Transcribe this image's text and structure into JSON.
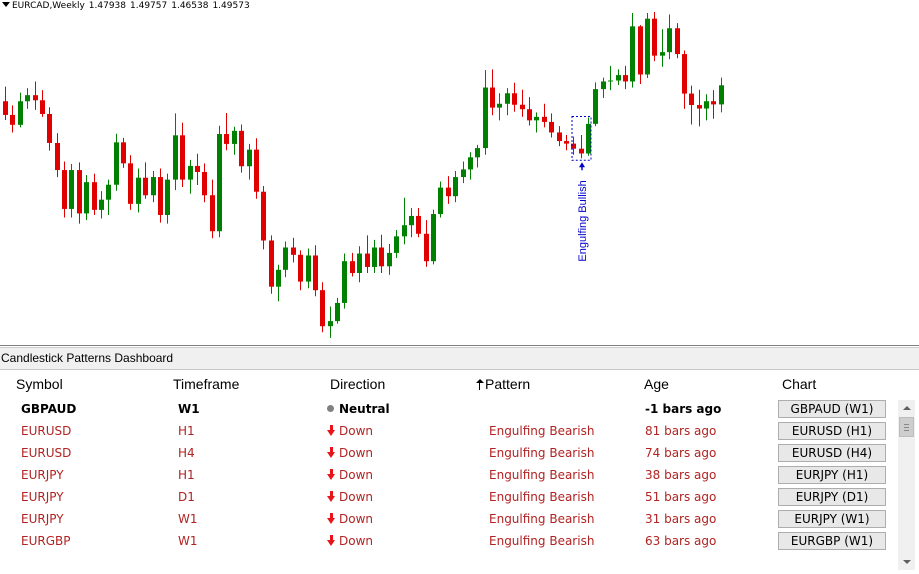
{
  "chart": {
    "symbol_timeframe": "EURCAD,Weekly",
    "ohlc": [
      "1.47938",
      "1.49757",
      "1.46538",
      "1.49573"
    ],
    "annotation": "Engulfing Bullish",
    "colors": {
      "bull": "#008000",
      "bear": "#e00000",
      "annotation": "#0000cd"
    }
  },
  "chart_data": {
    "type": "candlestick",
    "title": "EURCAD,Weekly",
    "note": "values are approximate, read from price shape (no price axis visible)",
    "candles": [
      {
        "o": 1.464,
        "h": 1.4686,
        "l": 1.4581,
        "c": 1.4597
      },
      {
        "o": 1.4597,
        "h": 1.4627,
        "l": 1.4542,
        "c": 1.4566
      },
      {
        "o": 1.4566,
        "h": 1.4667,
        "l": 1.4558,
        "c": 1.464
      },
      {
        "o": 1.464,
        "h": 1.4681,
        "l": 1.4616,
        "c": 1.4659
      },
      {
        "o": 1.4659,
        "h": 1.4702,
        "l": 1.4613,
        "c": 1.4643
      },
      {
        "o": 1.4643,
        "h": 1.4675,
        "l": 1.4591,
        "c": 1.46
      },
      {
        "o": 1.46,
        "h": 1.4621,
        "l": 1.4485,
        "c": 1.4509
      },
      {
        "o": 1.4509,
        "h": 1.454,
        "l": 1.4402,
        "c": 1.4424
      },
      {
        "o": 1.4424,
        "h": 1.4451,
        "l": 1.4275,
        "c": 1.4302
      },
      {
        "o": 1.4302,
        "h": 1.4443,
        "l": 1.4275,
        "c": 1.4424
      },
      {
        "o": 1.4424,
        "h": 1.4448,
        "l": 1.4256,
        "c": 1.4288
      },
      {
        "o": 1.4288,
        "h": 1.4408,
        "l": 1.4267,
        "c": 1.4386
      },
      {
        "o": 1.4386,
        "h": 1.4413,
        "l": 1.4283,
        "c": 1.4299
      },
      {
        "o": 1.4299,
        "h": 1.4358,
        "l": 1.4272,
        "c": 1.4331
      },
      {
        "o": 1.4331,
        "h": 1.4394,
        "l": 1.4283,
        "c": 1.4378
      },
      {
        "o": 1.4378,
        "h": 1.4538,
        "l": 1.4359,
        "c": 1.4511
      },
      {
        "o": 1.4511,
        "h": 1.4525,
        "l": 1.4431,
        "c": 1.4445
      },
      {
        "o": 1.4445,
        "h": 1.4471,
        "l": 1.4299,
        "c": 1.4318
      },
      {
        "o": 1.4318,
        "h": 1.4429,
        "l": 1.4291,
        "c": 1.44
      },
      {
        "o": 1.44,
        "h": 1.4448,
        "l": 1.4334,
        "c": 1.4345
      },
      {
        "o": 1.4345,
        "h": 1.4421,
        "l": 1.4323,
        "c": 1.4402
      },
      {
        "o": 1.4402,
        "h": 1.4429,
        "l": 1.4259,
        "c": 1.4283
      },
      {
        "o": 1.4283,
        "h": 1.4413,
        "l": 1.4256,
        "c": 1.4394
      },
      {
        "o": 1.4394,
        "h": 1.4602,
        "l": 1.4361,
        "c": 1.4533
      },
      {
        "o": 1.4533,
        "h": 1.4573,
        "l": 1.4371,
        "c": 1.4394
      },
      {
        "o": 1.4394,
        "h": 1.4456,
        "l": 1.435,
        "c": 1.4437
      },
      {
        "o": 1.4437,
        "h": 1.4475,
        "l": 1.4377,
        "c": 1.4418
      },
      {
        "o": 1.4418,
        "h": 1.4445,
        "l": 1.4323,
        "c": 1.4345
      },
      {
        "o": 1.4345,
        "h": 1.4394,
        "l": 1.421,
        "c": 1.4232
      },
      {
        "o": 1.4232,
        "h": 1.4563,
        "l": 1.4213,
        "c": 1.4537
      },
      {
        "o": 1.4537,
        "h": 1.4603,
        "l": 1.4486,
        "c": 1.4506
      },
      {
        "o": 1.4506,
        "h": 1.456,
        "l": 1.4472,
        "c": 1.4547
      },
      {
        "o": 1.4547,
        "h": 1.4567,
        "l": 1.4416,
        "c": 1.4436
      },
      {
        "o": 1.4436,
        "h": 1.4506,
        "l": 1.4394,
        "c": 1.4488
      },
      {
        "o": 1.4488,
        "h": 1.4524,
        "l": 1.4334,
        "c": 1.4356
      },
      {
        "o": 1.4356,
        "h": 1.4374,
        "l": 1.4175,
        "c": 1.4203
      },
      {
        "o": 1.4203,
        "h": 1.4219,
        "l": 1.4036,
        "c": 1.4058
      },
      {
        "o": 1.4058,
        "h": 1.4127,
        "l": 1.4012,
        "c": 1.4111
      },
      {
        "o": 1.4111,
        "h": 1.42,
        "l": 1.4088,
        "c": 1.4181
      },
      {
        "o": 1.4181,
        "h": 1.4211,
        "l": 1.4134,
        "c": 1.4158
      },
      {
        "o": 1.4158,
        "h": 1.4172,
        "l": 1.4047,
        "c": 1.4074
      },
      {
        "o": 1.4074,
        "h": 1.4178,
        "l": 1.4053,
        "c": 1.4156
      },
      {
        "o": 1.4156,
        "h": 1.4188,
        "l": 1.4028,
        "c": 1.4047
      },
      {
        "o": 1.4047,
        "h": 1.4072,
        "l": 1.3915,
        "c": 1.3934
      },
      {
        "o": 1.3934,
        "h": 1.3996,
        "l": 1.3897,
        "c": 1.395
      },
      {
        "o": 1.395,
        "h": 1.4023,
        "l": 1.3942,
        "c": 1.4007
      },
      {
        "o": 1.4007,
        "h": 1.4162,
        "l": 1.3989,
        "c": 1.4138
      },
      {
        "o": 1.4138,
        "h": 1.4164,
        "l": 1.409,
        "c": 1.4101
      },
      {
        "o": 1.4101,
        "h": 1.4185,
        "l": 1.4072,
        "c": 1.4162
      },
      {
        "o": 1.4162,
        "h": 1.4219,
        "l": 1.4101,
        "c": 1.412
      },
      {
        "o": 1.412,
        "h": 1.4205,
        "l": 1.4101,
        "c": 1.4181
      },
      {
        "o": 1.4181,
        "h": 1.4221,
        "l": 1.4101,
        "c": 1.4122
      },
      {
        "o": 1.4122,
        "h": 1.4192,
        "l": 1.4095,
        "c": 1.4164
      },
      {
        "o": 1.4164,
        "h": 1.4236,
        "l": 1.4148,
        "c": 1.4216
      },
      {
        "o": 1.4216,
        "h": 1.4337,
        "l": 1.4191,
        "c": 1.4251
      },
      {
        "o": 1.4251,
        "h": 1.4305,
        "l": 1.4213,
        "c": 1.428
      },
      {
        "o": 1.428,
        "h": 1.4305,
        "l": 1.4213,
        "c": 1.4224
      },
      {
        "o": 1.4224,
        "h": 1.4267,
        "l": 1.412,
        "c": 1.4138
      },
      {
        "o": 1.4138,
        "h": 1.43,
        "l": 1.4128,
        "c": 1.4286
      },
      {
        "o": 1.4286,
        "h": 1.4388,
        "l": 1.4275,
        "c": 1.4369
      },
      {
        "o": 1.4369,
        "h": 1.4405,
        "l": 1.4318,
        "c": 1.4342
      },
      {
        "o": 1.4342,
        "h": 1.4421,
        "l": 1.4323,
        "c": 1.4402
      },
      {
        "o": 1.4402,
        "h": 1.4451,
        "l": 1.4383,
        "c": 1.4426
      },
      {
        "o": 1.4426,
        "h": 1.448,
        "l": 1.4394,
        "c": 1.4464
      },
      {
        "o": 1.4464,
        "h": 1.4503,
        "l": 1.4432,
        "c": 1.4493
      },
      {
        "o": 1.4493,
        "h": 1.4738,
        "l": 1.4472,
        "c": 1.4683
      },
      {
        "o": 1.4683,
        "h": 1.474,
        "l": 1.4596,
        "c": 1.462
      },
      {
        "o": 1.462,
        "h": 1.4665,
        "l": 1.458,
        "c": 1.4632
      },
      {
        "o": 1.4632,
        "h": 1.4681,
        "l": 1.4596,
        "c": 1.4665
      },
      {
        "o": 1.4665,
        "h": 1.4698,
        "l": 1.4607,
        "c": 1.4629
      },
      {
        "o": 1.4629,
        "h": 1.4676,
        "l": 1.4591,
        "c": 1.4615
      },
      {
        "o": 1.4615,
        "h": 1.4653,
        "l": 1.4564,
        "c": 1.458
      },
      {
        "o": 1.458,
        "h": 1.4605,
        "l": 1.4542,
        "c": 1.4591
      },
      {
        "o": 1.4591,
        "h": 1.4632,
        "l": 1.4558,
        "c": 1.4575
      },
      {
        "o": 1.4575,
        "h": 1.4602,
        "l": 1.4526,
        "c": 1.4542
      },
      {
        "o": 1.4542,
        "h": 1.4562,
        "l": 1.4499,
        "c": 1.4515
      },
      {
        "o": 1.4515,
        "h": 1.4534,
        "l": 1.4486,
        "c": 1.4507
      },
      {
        "o": 1.4507,
        "h": 1.4529,
        "l": 1.4472,
        "c": 1.4491
      },
      {
        "o": 1.4491,
        "h": 1.4534,
        "l": 1.4461,
        "c": 1.4476
      },
      {
        "o": 1.4476,
        "h": 1.4589,
        "l": 1.4469,
        "c": 1.4569
      },
      {
        "o": 1.4569,
        "h": 1.4699,
        "l": 1.4562,
        "c": 1.4678
      },
      {
        "o": 1.4678,
        "h": 1.4714,
        "l": 1.465,
        "c": 1.4702
      },
      {
        "o": 1.4702,
        "h": 1.4751,
        "l": 1.4675,
        "c": 1.4705
      },
      {
        "o": 1.4705,
        "h": 1.474,
        "l": 1.4691,
        "c": 1.4722
      },
      {
        "o": 1.4722,
        "h": 1.4751,
        "l": 1.4678,
        "c": 1.4702
      },
      {
        "o": 1.4702,
        "h": 1.4917,
        "l": 1.4683,
        "c": 1.4875
      },
      {
        "o": 1.4875,
        "h": 1.4879,
        "l": 1.4694,
        "c": 1.4724
      },
      {
        "o": 1.4724,
        "h": 1.4917,
        "l": 1.4713,
        "c": 1.4899
      },
      {
        "o": 1.4899,
        "h": 1.492,
        "l": 1.4766,
        "c": 1.4783
      },
      {
        "o": 1.4783,
        "h": 1.4866,
        "l": 1.4748,
        "c": 1.4794
      },
      {
        "o": 1.4794,
        "h": 1.4912,
        "l": 1.4772,
        "c": 1.4869
      },
      {
        "o": 1.4869,
        "h": 1.4885,
        "l": 1.4775,
        "c": 1.4788
      },
      {
        "o": 1.4788,
        "h": 1.4799,
        "l": 1.4616,
        "c": 1.4664
      },
      {
        "o": 1.4664,
        "h": 1.4689,
        "l": 1.4567,
        "c": 1.4628
      },
      {
        "o": 1.4628,
        "h": 1.4676,
        "l": 1.4561,
        "c": 1.4617
      },
      {
        "o": 1.4617,
        "h": 1.4662,
        "l": 1.458,
        "c": 1.464
      },
      {
        "o": 1.464,
        "h": 1.4675,
        "l": 1.4585,
        "c": 1.463
      },
      {
        "o": 1.463,
        "h": 1.4714,
        "l": 1.4605,
        "c": 1.469
      }
    ]
  },
  "dashboard": {
    "title": "Candlestick Patterns Dashboard",
    "headers": {
      "symbol": "Symbol",
      "timeframe": "Timeframe",
      "direction": "Direction",
      "pattern": "Pattern",
      "age": "Age",
      "chart": "Chart"
    },
    "rows": [
      {
        "symbol": "GBPAUD",
        "timeframe": "W1",
        "direction": "Neutral",
        "pattern": "",
        "age": "-1 bars ago",
        "chart_button": "GBPAUD (W1)"
      },
      {
        "symbol": "EURUSD",
        "timeframe": "H1",
        "direction": "Down",
        "pattern": "Engulfing Bearish",
        "age": "81 bars ago",
        "chart_button": "EURUSD (H1)"
      },
      {
        "symbol": "EURUSD",
        "timeframe": "H4",
        "direction": "Down",
        "pattern": "Engulfing Bearish",
        "age": "74 bars ago",
        "chart_button": "EURUSD (H4)"
      },
      {
        "symbol": "EURJPY",
        "timeframe": "H1",
        "direction": "Down",
        "pattern": "Engulfing Bearish",
        "age": "38 bars ago",
        "chart_button": "EURJPY (H1)"
      },
      {
        "symbol": "EURJPY",
        "timeframe": "D1",
        "direction": "Down",
        "pattern": "Engulfing Bearish",
        "age": "51 bars ago",
        "chart_button": "EURJPY (D1)"
      },
      {
        "symbol": "EURJPY",
        "timeframe": "W1",
        "direction": "Down",
        "pattern": "Engulfing Bearish",
        "age": "31 bars ago",
        "chart_button": "EURJPY (W1)"
      },
      {
        "symbol": "EURGBP",
        "timeframe": "W1",
        "direction": "Down",
        "pattern": "Engulfing Bearish",
        "age": "63 bars ago",
        "chart_button": "EURGBP (W1)"
      }
    ],
    "colors": {
      "neutral": "#000000",
      "down": "#b22222",
      "arrow": "#e8141a",
      "dot": "#808080"
    }
  }
}
